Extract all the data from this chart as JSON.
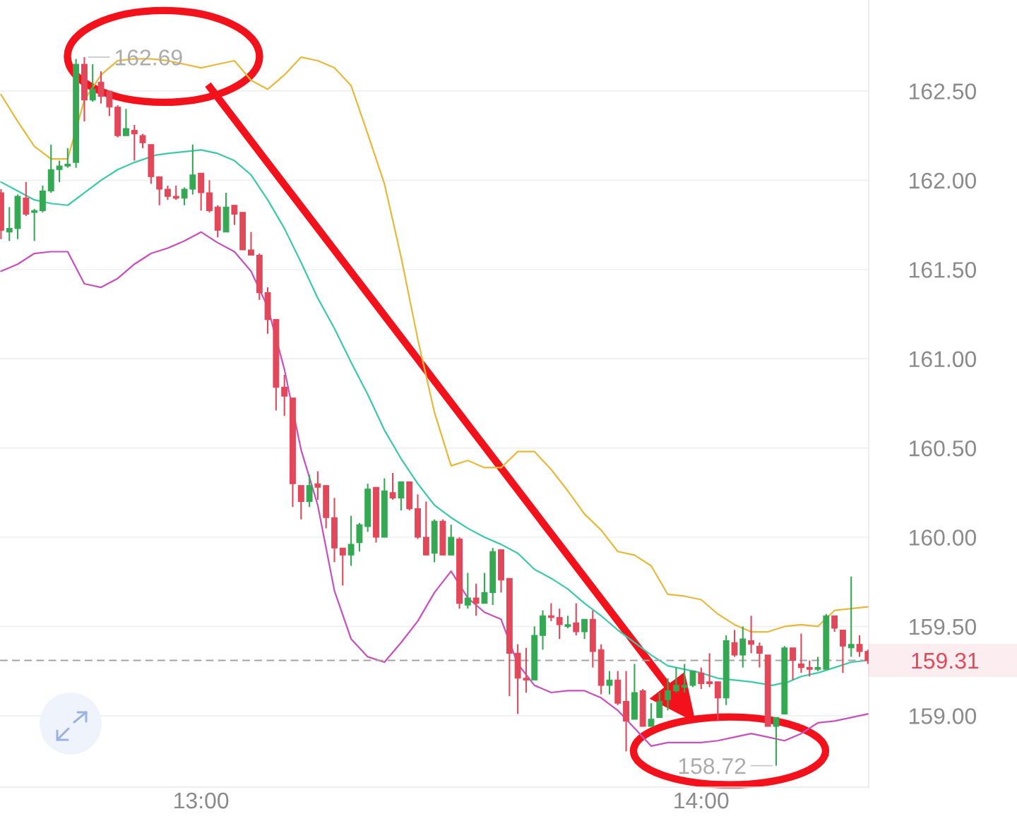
{
  "chart_data": {
    "type": "candlestick",
    "x": [
      12.6,
      12.6167,
      12.6333,
      12.65,
      12.6667,
      12.6833,
      12.7,
      12.7167,
      12.7333,
      12.75,
      12.7667,
      12.7833,
      12.8,
      12.8167,
      12.8333,
      12.85,
      12.8667,
      12.8833,
      12.9,
      12.9167,
      12.9333,
      12.95,
      12.9667,
      12.9833,
      13.0,
      13.0167,
      13.0333,
      13.05,
      13.0667,
      13.0833,
      13.1,
      13.1167,
      13.1333,
      13.15,
      13.1667,
      13.1833,
      13.2,
      13.2167,
      13.2333,
      13.25,
      13.2667,
      13.2833,
      13.3,
      13.3167,
      13.3333,
      13.35,
      13.3667,
      13.3833,
      13.4,
      13.4167,
      13.4333,
      13.45,
      13.4667,
      13.4833,
      13.5,
      13.5167,
      13.5333,
      13.55,
      13.5667,
      13.5833,
      13.6,
      13.6167,
      13.6333,
      13.65,
      13.6667,
      13.6833,
      13.7,
      13.7167,
      13.7333,
      13.75,
      13.7667,
      13.7833,
      13.8,
      13.8167,
      13.8333,
      13.85,
      13.8667,
      13.8833,
      13.9,
      13.9167,
      13.9333,
      13.95,
      13.9667,
      13.9833,
      14.0,
      14.0167,
      14.0333,
      14.05,
      14.0667,
      14.0833,
      14.1,
      14.1167,
      14.1333,
      14.15,
      14.1667,
      14.1833,
      14.2,
      14.2167,
      14.2333,
      14.25,
      14.2667,
      14.2833,
      14.3,
      14.3167,
      14.3333
    ],
    "ohlc": [
      [
        161.93,
        161.95,
        161.67,
        161.72
      ],
      [
        161.71,
        161.85,
        161.66,
        161.73
      ],
      [
        161.73,
        161.92,
        161.67,
        161.91
      ],
      [
        161.9,
        161.99,
        161.8,
        161.81
      ],
      [
        161.82,
        161.84,
        161.66,
        161.83
      ],
      [
        161.83,
        161.97,
        161.82,
        161.94
      ],
      [
        161.94,
        162.2,
        161.93,
        162.06
      ],
      [
        162.06,
        162.11,
        161.99,
        162.08
      ],
      [
        162.08,
        162.18,
        162.07,
        162.09
      ],
      [
        162.1,
        162.68,
        162.07,
        162.65
      ],
      [
        162.65,
        162.69,
        162.33,
        162.45
      ],
      [
        162.45,
        162.65,
        162.44,
        162.51
      ],
      [
        162.55,
        162.61,
        162.43,
        162.47
      ],
      [
        162.5,
        162.5,
        162.36,
        162.41
      ],
      [
        162.41,
        162.42,
        162.24,
        162.25
      ],
      [
        162.25,
        162.4,
        162.25,
        162.29
      ],
      [
        162.28,
        162.31,
        162.11,
        162.26
      ],
      [
        162.25,
        162.26,
        162.18,
        162.21
      ],
      [
        162.2,
        162.2,
        161.98,
        162.02
      ],
      [
        162.02,
        162.02,
        161.86,
        161.95
      ],
      [
        161.95,
        161.97,
        161.89,
        161.91
      ],
      [
        161.91,
        161.97,
        161.89,
        161.9
      ],
      [
        161.9,
        161.96,
        161.86,
        161.95
      ],
      [
        161.95,
        162.2,
        161.92,
        162.03
      ],
      [
        162.04,
        162.04,
        161.83,
        161.93
      ],
      [
        161.93,
        162.0,
        161.82,
        161.83
      ],
      [
        161.85,
        161.86,
        161.68,
        161.72
      ],
      [
        161.71,
        161.93,
        161.71,
        161.85
      ],
      [
        161.86,
        161.86,
        161.75,
        161.81
      ],
      [
        161.82,
        161.82,
        161.61,
        161.61
      ],
      [
        161.61,
        161.71,
        161.58,
        161.58
      ],
      [
        161.58,
        161.59,
        161.33,
        161.37
      ],
      [
        161.37,
        161.4,
        161.14,
        161.22
      ],
      [
        161.22,
        161.22,
        160.71,
        160.84
      ],
      [
        160.84,
        160.91,
        160.68,
        160.79
      ],
      [
        160.78,
        160.78,
        160.17,
        160.3
      ],
      [
        160.29,
        160.29,
        160.1,
        160.2
      ],
      [
        160.2,
        160.35,
        160.17,
        160.29
      ],
      [
        160.3,
        160.37,
        160.21,
        160.28
      ],
      [
        160.29,
        160.29,
        160.05,
        160.11
      ],
      [
        160.11,
        160.22,
        159.86,
        159.94
      ],
      [
        159.94,
        159.94,
        159.73,
        159.9
      ],
      [
        159.9,
        160.12,
        159.84,
        159.96
      ],
      [
        159.97,
        160.08,
        159.92,
        160.07
      ],
      [
        160.06,
        160.3,
        160.03,
        160.27
      ],
      [
        160.28,
        160.28,
        159.97,
        160.0
      ],
      [
        160.0,
        160.33,
        160.0,
        160.26
      ],
      [
        160.25,
        160.36,
        160.21,
        160.22
      ],
      [
        160.22,
        160.31,
        160.15,
        160.31
      ],
      [
        160.31,
        160.31,
        160.15,
        160.16
      ],
      [
        160.16,
        160.24,
        159.99,
        160.0
      ],
      [
        160.0,
        160.2,
        159.9,
        159.9
      ],
      [
        159.91,
        160.1,
        159.86,
        160.09
      ],
      [
        160.09,
        160.1,
        159.9,
        159.9
      ],
      [
        159.9,
        160.07,
        159.9,
        160.0
      ],
      [
        159.99,
        160.0,
        159.6,
        159.63
      ],
      [
        159.62,
        159.8,
        159.6,
        159.66
      ],
      [
        159.66,
        159.74,
        159.56,
        159.63
      ],
      [
        159.63,
        159.8,
        159.63,
        159.69
      ],
      [
        159.69,
        159.94,
        159.62,
        159.92
      ],
      [
        159.93,
        159.93,
        159.69,
        159.76
      ],
      [
        159.77,
        159.77,
        159.11,
        159.35
      ],
      [
        159.35,
        159.4,
        159.01,
        159.21
      ],
      [
        159.21,
        159.38,
        159.13,
        159.2
      ],
      [
        159.2,
        159.5,
        159.2,
        159.45
      ],
      [
        159.45,
        159.59,
        159.37,
        159.56
      ],
      [
        159.56,
        159.63,
        159.53,
        159.55
      ],
      [
        159.55,
        159.6,
        159.43,
        159.51
      ],
      [
        159.5,
        159.56,
        159.49,
        159.51
      ],
      [
        159.52,
        159.63,
        159.45,
        159.47
      ],
      [
        159.47,
        159.54,
        159.43,
        159.54
      ],
      [
        159.54,
        159.59,
        159.27,
        159.36
      ],
      [
        159.37,
        159.4,
        159.12,
        159.17
      ],
      [
        159.17,
        159.25,
        159.12,
        159.2
      ],
      [
        159.2,
        159.25,
        159.06,
        159.07
      ],
      [
        159.08,
        159.25,
        158.8,
        158.97
      ],
      [
        158.98,
        159.29,
        158.98,
        159.13
      ],
      [
        159.14,
        159.15,
        158.94,
        158.94
      ],
      [
        158.94,
        159.07,
        158.94,
        158.98
      ],
      [
        158.99,
        159.13,
        158.99,
        159.08
      ],
      [
        159.09,
        159.21,
        159.03,
        159.14
      ],
      [
        159.14,
        159.27,
        159.13,
        159.17
      ],
      [
        159.16,
        159.29,
        159.13,
        159.17
      ],
      [
        159.17,
        159.25,
        159.16,
        159.25
      ],
      [
        159.24,
        159.27,
        159.15,
        159.18
      ],
      [
        159.19,
        159.35,
        159.16,
        159.18
      ],
      [
        159.19,
        159.19,
        158.97,
        159.1
      ],
      [
        159.1,
        159.45,
        159.06,
        159.42
      ],
      [
        159.41,
        159.48,
        159.33,
        159.34
      ],
      [
        159.34,
        159.5,
        159.27,
        159.43
      ],
      [
        159.42,
        159.56,
        159.35,
        159.4
      ],
      [
        159.39,
        159.41,
        159.27,
        159.35
      ],
      [
        159.34,
        159.34,
        158.94,
        158.94
      ],
      [
        158.94,
        158.99,
        158.72,
        158.99
      ],
      [
        159.01,
        159.39,
        159.01,
        159.38
      ],
      [
        159.38,
        159.38,
        159.2,
        159.31
      ],
      [
        159.29,
        159.46,
        159.24,
        159.27
      ],
      [
        159.27,
        159.31,
        159.22,
        159.26
      ],
      [
        159.26,
        159.33,
        159.25,
        159.27
      ],
      [
        159.26,
        159.57,
        159.26,
        159.56
      ],
      [
        159.56,
        159.56,
        159.47,
        159.49
      ],
      [
        159.48,
        159.48,
        159.24,
        159.39
      ],
      [
        159.38,
        159.78,
        159.33,
        159.4
      ],
      [
        159.4,
        159.45,
        159.33,
        159.36
      ],
      [
        159.36,
        159.37,
        159.29,
        159.31
      ]
    ],
    "colors": [
      "#e2475a",
      "#35a853",
      "#35a853",
      "#e2475a",
      "#35a853",
      "#35a853",
      "#35a853",
      "#35a853",
      "#35a853",
      "#35a853",
      "#e2475a",
      "#35a853",
      "#e2475a",
      "#e2475a",
      "#e2475a",
      "#35a853",
      "#e2475a",
      "#e2475a",
      "#e2475a",
      "#e2475a",
      "#e2475a",
      "#e2475a",
      "#35a853",
      "#35a853",
      "#e2475a",
      "#e2475a",
      "#e2475a",
      "#35a853",
      "#e2475a",
      "#e2475a",
      "#e2475a",
      "#e2475a",
      "#e2475a",
      "#e2475a",
      "#e2475a",
      "#e2475a",
      "#e2475a",
      "#35a853",
      "#e2475a",
      "#e2475a",
      "#e2475a",
      "#e2475a",
      "#35a853",
      "#35a853",
      "#35a853",
      "#e2475a",
      "#35a853",
      "#e2475a",
      "#35a853",
      "#e2475a",
      "#e2475a",
      "#e2475a",
      "#35a853",
      "#e2475a",
      "#35a853",
      "#e2475a",
      "#35a853",
      "#e2475a",
      "#35a853",
      "#35a853",
      "#e2475a",
      "#e2475a",
      "#e2475a",
      "#e2475a",
      "#35a853",
      "#35a853",
      "#e2475a",
      "#e2475a",
      "#35a853",
      "#e2475a",
      "#35a853",
      "#e2475a",
      "#e2475a",
      "#35a853",
      "#e2475a",
      "#e2475a",
      "#35a853",
      "#e2475a",
      "#35a853",
      "#35a853",
      "#35a853",
      "#35a853",
      "#35a853",
      "#35a853",
      "#e2475a",
      "#e2475a",
      "#e2475a",
      "#35a853",
      "#e2475a",
      "#35a853",
      "#e2475a",
      "#e2475a",
      "#e2475a",
      "#35a853",
      "#35a853",
      "#e2475a",
      "#e2475a",
      "#e2475a",
      "#35a853",
      "#35a853",
      "#e2475a",
      "#e2475a",
      "#35a853",
      "#e2475a",
      "#e2475a"
    ],
    "series": [
      {
        "type": "line",
        "color": "#e6b93c",
        "x": [
          12.6,
          12.6333,
          12.6667,
          12.7,
          12.7333,
          12.7667,
          12.8,
          12.8333,
          12.8667,
          12.9,
          12.9333,
          12.9667,
          13.0,
          13.0333,
          13.0667,
          13.1,
          13.1333,
          13.1667,
          13.2,
          13.2333,
          13.2667,
          13.3,
          13.3333,
          13.3667,
          13.4,
          13.4333,
          13.4667,
          13.5,
          13.5333,
          13.5667,
          13.6,
          13.6333,
          13.6667,
          13.7,
          13.7333,
          13.7667,
          13.8,
          13.8333,
          13.8667,
          13.9,
          13.9333,
          13.9667,
          14.0,
          14.0333,
          14.0667,
          14.1,
          14.1333,
          14.1667,
          14.2,
          14.2333,
          14.2667,
          14.3,
          14.3333
        ],
        "values": [
          162.48,
          162.33,
          162.19,
          162.12,
          162.12,
          162.45,
          162.59,
          162.67,
          162.68,
          162.68,
          162.67,
          162.65,
          162.63,
          162.65,
          162.67,
          162.56,
          162.51,
          162.59,
          162.69,
          162.67,
          162.63,
          162.53,
          162.26,
          161.98,
          161.57,
          161.11,
          160.7,
          160.4,
          160.43,
          160.39,
          160.39,
          160.48,
          160.48,
          160.38,
          160.26,
          160.13,
          160.04,
          159.92,
          159.9,
          159.84,
          159.68,
          159.67,
          159.65,
          159.57,
          159.51,
          159.47,
          159.47,
          159.5,
          159.51,
          159.5,
          159.59,
          159.6,
          159.61
        ]
      },
      {
        "type": "line",
        "color": "#3cc8aa",
        "x": [
          12.6,
          12.6333,
          12.6667,
          12.7,
          12.7333,
          12.7667,
          12.8,
          12.8333,
          12.8667,
          12.9083,
          12.9333,
          12.9667,
          13.0,
          13.0333,
          13.0667,
          13.1,
          13.1333,
          13.1667,
          13.2,
          13.2333,
          13.2667,
          13.3,
          13.3333,
          13.3667,
          13.4,
          13.4333,
          13.4667,
          13.5,
          13.5333,
          13.5667,
          13.6,
          13.6333,
          13.6667,
          13.7,
          13.7333,
          13.7667,
          13.8,
          13.8333,
          13.8667,
          13.9,
          13.9333,
          13.9667,
          14.0,
          14.0333,
          14.0667,
          14.1,
          14.1417,
          14.175,
          14.2,
          14.2333,
          14.2667,
          14.3,
          14.3333
        ],
        "values": [
          161.99,
          161.94,
          161.89,
          161.87,
          161.86,
          161.93,
          162.0,
          162.06,
          162.1,
          162.14,
          162.15,
          162.16,
          162.17,
          162.15,
          162.11,
          162.03,
          161.89,
          161.73,
          161.54,
          161.34,
          161.17,
          160.98,
          160.8,
          160.6,
          160.44,
          160.3,
          160.18,
          160.11,
          160.05,
          160.0,
          159.96,
          159.91,
          159.82,
          159.77,
          159.71,
          159.63,
          159.56,
          159.48,
          159.41,
          159.34,
          159.28,
          159.26,
          159.24,
          159.21,
          159.2,
          159.19,
          159.17,
          159.19,
          159.22,
          159.24,
          159.27,
          159.3,
          159.31
        ]
      },
      {
        "type": "line",
        "color": "#c850be",
        "x": [
          12.6,
          12.6333,
          12.6667,
          12.7,
          12.7333,
          12.7667,
          12.8,
          12.8333,
          12.8667,
          12.9,
          12.9333,
          12.9667,
          13.0,
          13.0333,
          13.0667,
          13.1,
          13.1333,
          13.1667,
          13.2,
          13.2333,
          13.2667,
          13.3,
          13.3333,
          13.3667,
          13.4,
          13.4333,
          13.4667,
          13.5,
          13.5333,
          13.5667,
          13.6,
          13.6333,
          13.6667,
          13.7,
          13.7333,
          13.7667,
          13.8,
          13.8333,
          13.8667,
          13.9,
          13.9333,
          13.9667,
          14.0,
          14.0333,
          14.0667,
          14.1,
          14.1333,
          14.1667,
          14.2,
          14.2333,
          14.2667,
          14.3,
          14.3333
        ],
        "values": [
          161.49,
          161.53,
          161.59,
          161.6,
          161.6,
          161.42,
          161.4,
          161.45,
          161.53,
          161.59,
          161.62,
          161.66,
          161.71,
          161.65,
          161.6,
          161.49,
          161.29,
          160.94,
          160.49,
          160.18,
          159.7,
          159.43,
          159.33,
          159.3,
          159.41,
          159.53,
          159.69,
          159.81,
          159.66,
          159.58,
          159.54,
          159.29,
          159.17,
          159.13,
          159.14,
          159.14,
          159.1,
          159.03,
          158.93,
          158.83,
          158.85,
          158.85,
          158.85,
          158.86,
          158.88,
          158.9,
          158.88,
          158.86,
          158.9,
          158.96,
          158.97,
          158.99,
          159.01
        ]
      }
    ],
    "xlim": [
      12.598,
      14.335
    ],
    "ylim": [
      158.6,
      163.01
    ],
    "xticks": [
      {
        "value": 13,
        "label": "13:00"
      },
      {
        "value": 14,
        "label": "14:00"
      }
    ],
    "yticks": [
      {
        "value": 159,
        "label": "159.00"
      },
      {
        "value": 159.5,
        "label": "159.50"
      },
      {
        "value": 160,
        "label": "160.00"
      },
      {
        "value": 160.5,
        "label": "160.50"
      },
      {
        "value": 161,
        "label": "161.00"
      },
      {
        "value": 161.5,
        "label": "161.50"
      },
      {
        "value": 162,
        "label": "162.00"
      },
      {
        "value": 162.5,
        "label": "162.50"
      }
    ],
    "grid": "y",
    "ref_lines": [
      {
        "axis": "y",
        "value": 159.31,
        "label": "159.31",
        "color": "#a3a3a3",
        "line_style": "dashed"
      }
    ],
    "annotations": [
      {
        "text": "162.69",
        "x": 12.7667,
        "y": 162.69
      },
      {
        "text": "158.72",
        "x": 14.15,
        "y": 158.72
      }
    ]
  }
}
